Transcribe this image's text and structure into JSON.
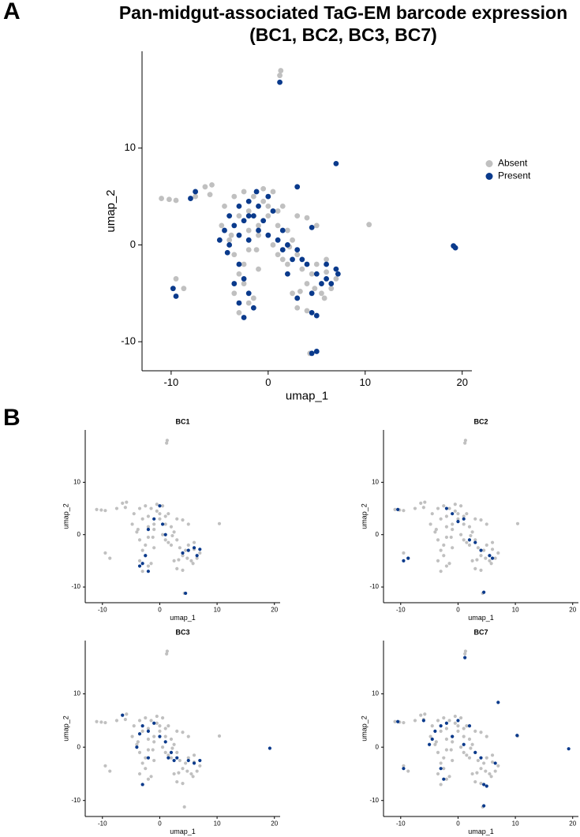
{
  "panel_labels": [
    "A",
    "B"
  ],
  "chart_data": [
    {
      "type": "scatter",
      "title": [
        "Pan-midgut-associated TaG-EM barcode expression",
        "(BC1, BC2, BC3, BC7)"
      ],
      "xlabel": "umap_1",
      "ylabel": "umap_2",
      "xlim": [
        -13,
        21
      ],
      "ylim": [
        -13,
        20
      ],
      "xticks": [
        -10,
        0,
        10,
        20
      ],
      "yticks": [
        -10,
        0,
        10
      ],
      "legend": "right",
      "series": [
        {
          "name": "Absent",
          "color": "#c0c0c0",
          "x": [
            1.2,
            1.3,
            -11,
            -10.2,
            -9.5,
            -6.5,
            -6,
            -5.8,
            -7.5,
            -4.5,
            -3.5,
            -2.5,
            -1.5,
            -0.5,
            0.5,
            1.5,
            -3,
            -2,
            -1,
            0,
            1,
            2,
            -4,
            -3.5,
            -2,
            -1,
            0.5,
            2.5,
            3,
            1.5,
            2,
            3.5,
            4.5,
            5,
            6,
            7,
            4,
            5.5,
            6.5,
            -3,
            -2.5,
            -3.5,
            -2,
            -3,
            -1.5,
            -2.5,
            3,
            4,
            10.4,
            5,
            3,
            4,
            -9.5,
            -8.7,
            4.3,
            2.5,
            1,
            -1,
            0,
            -4.8,
            -3.8,
            -1.2,
            6,
            3.3,
            2.2,
            4.8,
            5.8,
            -0.5,
            1,
            -2
          ],
          "values": [
            17.5,
            18,
            4.8,
            4.7,
            4.6,
            6,
            5.2,
            6.2,
            5,
            4,
            5,
            5.5,
            5,
            4.5,
            5.5,
            4,
            3,
            3.5,
            2,
            3,
            2,
            1.5,
            0.5,
            -1,
            -0.5,
            1,
            0,
            0.5,
            -1,
            -1.5,
            -2,
            -2.5,
            -3,
            -2,
            -2.8,
            -3.5,
            -4,
            -5,
            -4.5,
            -3,
            -4,
            -5,
            -6,
            -7,
            -5.5,
            -2,
            -6.5,
            -6.8,
            2.1,
            2,
            3,
            2.8,
            -3.5,
            -4.5,
            -11.2,
            -5,
            -1,
            -2.5,
            4,
            2,
            1,
            -0.5,
            -1.5,
            -4.8,
            -0.2,
            -4.5,
            -5.5,
            5.8,
            3.5,
            1.5
          ]
        },
        {
          "name": "Present",
          "color": "#0a3a8c",
          "x": [
            1.2,
            7,
            -4,
            -3,
            -2,
            -1,
            0,
            -2.5,
            -1.5,
            0.5,
            -4.5,
            -5,
            -4,
            -3,
            -2,
            -1,
            0,
            1,
            2,
            3,
            1.5,
            2.5,
            3.5,
            4,
            5,
            6,
            7,
            6.5,
            5.5,
            7.2,
            4.5,
            3,
            5,
            4.5,
            -3,
            -2.5,
            -3.5,
            -2,
            -3,
            -2.5,
            -1.5,
            -9.8,
            -9.5,
            19.3,
            19.1,
            5,
            4.5,
            -8,
            -7.5,
            4.5,
            3,
            -0.5,
            1.5,
            -4.2,
            -3.5,
            2,
            6,
            -1.2,
            -2
          ],
          "values": [
            16.8,
            8.4,
            3,
            4,
            4.5,
            4,
            5,
            2.5,
            3,
            3.5,
            1.5,
            0.5,
            0,
            1,
            0.5,
            1.5,
            1,
            0.5,
            0,
            -0.5,
            -0.5,
            -1.5,
            -1.5,
            -2,
            -3,
            -3.5,
            -2.5,
            -4,
            -4,
            -3,
            -5,
            -5.5,
            -7.3,
            -7,
            -2,
            -3.5,
            -4,
            -5,
            -6,
            -7.5,
            -6.5,
            -4.5,
            -5.3,
            -0.3,
            -0.1,
            -11,
            -11.2,
            4.8,
            5.5,
            1.8,
            6,
            2.5,
            1.5,
            -0.8,
            2,
            -3,
            -2,
            5.5,
            3
          ]
        }
      ]
    },
    {
      "type": "scatter",
      "title": "BC1",
      "xlabel": "umap_1",
      "ylabel": "umap_2",
      "xlim": [
        -13,
        21
      ],
      "ylim": [
        -13,
        20
      ],
      "xticks": [
        -10,
        0,
        10,
        20
      ],
      "yticks": [
        -10,
        0,
        10
      ],
      "series": [
        {
          "color": "#c0c0c0",
          "x": [
            1.2,
            1.3,
            -11,
            -10.2,
            -9.5,
            -6.5,
            -6,
            -5.8,
            -7.5,
            -4.5,
            -3.5,
            -2.5,
            -1.5,
            -0.5,
            0.5,
            1.5,
            -3,
            -2,
            -1,
            0,
            1,
            2,
            -4,
            -3.5,
            -2,
            -1,
            0.5,
            2.5,
            3,
            1.5,
            2,
            3.5,
            4.5,
            5,
            6,
            7,
            4,
            5.5,
            6.5,
            -3,
            -2.5,
            -3.5,
            -2,
            -3,
            -1.5,
            -2.5,
            3,
            4,
            10.4,
            5,
            3,
            4,
            -9.5,
            -8.7,
            4.3,
            2.5,
            1,
            -1,
            0,
            -4.8,
            -3.8,
            -1.2,
            6,
            3.3,
            2.2,
            4.8,
            5.8,
            -0.5,
            1,
            -2
          ],
          "values": [
            17.5,
            18,
            4.8,
            4.7,
            4.6,
            6,
            5.2,
            6.2,
            5,
            4,
            5,
            5.5,
            5,
            4.5,
            5.5,
            4,
            3,
            3.5,
            2,
            3,
            2,
            1.5,
            0.5,
            -1,
            -0.5,
            1,
            0,
            0.5,
            -1,
            -1.5,
            -2,
            -2.5,
            -3,
            -2,
            -2.8,
            -3.5,
            -4,
            -5,
            -4.5,
            -3,
            -4,
            -5,
            -6,
            -7,
            -5.5,
            -2,
            -6.5,
            -6.8,
            2.1,
            2,
            3,
            2.8,
            -3.5,
            -4.5,
            -11.2,
            -5,
            -1,
            -2.5,
            4,
            2,
            1,
            -0.5,
            -1.5,
            -4.8,
            -0.2,
            -4.5,
            -5.5,
            5.8,
            3.5,
            1.5
          ]
        },
        {
          "color": "#0a3a8c",
          "x": [
            0,
            -1,
            -2,
            0.5,
            1,
            -2.5,
            -3,
            -2,
            -3.5,
            4,
            6,
            6.5,
            5,
            7,
            4.5
          ],
          "values": [
            5.5,
            3,
            1,
            2,
            0,
            -4,
            -5.5,
            -7,
            -6,
            -3.5,
            -2.5,
            -4,
            -3,
            -2.8,
            -11.2
          ]
        }
      ]
    },
    {
      "type": "scatter",
      "title": "BC2",
      "xlabel": "umap_1",
      "ylabel": "umap_2",
      "xlim": [
        -13,
        21
      ],
      "ylim": [
        -13,
        20
      ],
      "xticks": [
        -10,
        0,
        10,
        20
      ],
      "yticks": [
        -10,
        0,
        10
      ],
      "series": [
        {
          "color": "#c0c0c0",
          "x": [
            1.2,
            1.3,
            -11,
            -10.2,
            -9.5,
            -6.5,
            -6,
            -5.8,
            -7.5,
            -4.5,
            -3.5,
            -2.5,
            -1.5,
            -0.5,
            0.5,
            1.5,
            -3,
            -2,
            -1,
            0,
            1,
            2,
            -4,
            -3.5,
            -2,
            -1,
            0.5,
            2.5,
            3,
            1.5,
            2,
            3.5,
            4.5,
            5,
            6,
            7,
            4,
            5.5,
            6.5,
            -3,
            -2.5,
            -3.5,
            -2,
            -3,
            -1.5,
            -2.5,
            3,
            4,
            10.4,
            5,
            3,
            4,
            -9.5,
            -8.7,
            4.3,
            2.5,
            1,
            -1,
            0,
            -4.8,
            -3.8,
            -1.2,
            6,
            3.3,
            2.2,
            4.8,
            5.8,
            -0.5,
            1,
            -2
          ],
          "values": [
            17.5,
            18,
            4.8,
            4.7,
            4.6,
            6,
            5.2,
            6.2,
            5,
            4,
            5,
            5.5,
            5,
            4.5,
            5.5,
            4,
            3,
            3.5,
            2,
            3,
            2,
            1.5,
            0.5,
            -1,
            -0.5,
            1,
            0,
            0.5,
            -1,
            -1.5,
            -2,
            -2.5,
            -3,
            -2,
            -2.8,
            -3.5,
            -4,
            -5,
            -4.5,
            -3,
            -4,
            -5,
            -6,
            -7,
            -5.5,
            -2,
            -6.5,
            -6.8,
            2.1,
            2,
            3,
            2.8,
            -3.5,
            -4.5,
            -11.2,
            -5,
            -1,
            -2.5,
            4,
            2,
            1,
            -0.5,
            -1.5,
            -4.8,
            -0.2,
            -4.5,
            -5.5,
            5.8,
            3.5,
            1.5
          ]
        },
        {
          "color": "#0a3a8c",
          "x": [
            -1,
            0,
            -2,
            2,
            3,
            4,
            5.5,
            6,
            -10.5,
            -9.5,
            -8.7,
            4.5,
            1
          ],
          "values": [
            4,
            2.5,
            5,
            -1,
            -1.5,
            -3,
            -4,
            -4.5,
            4.8,
            -5,
            -4.5,
            -11,
            3
          ]
        }
      ]
    },
    {
      "type": "scatter",
      "title": "BC3",
      "xlabel": "umap_1",
      "ylabel": "umap_2",
      "xlim": [
        -13,
        21
      ],
      "ylim": [
        -13,
        20
      ],
      "xticks": [
        -10,
        0,
        10,
        20
      ],
      "yticks": [
        -10,
        0,
        10
      ],
      "series": [
        {
          "color": "#c0c0c0",
          "x": [
            1.2,
            1.3,
            -11,
            -10.2,
            -9.5,
            -6.5,
            -6,
            -5.8,
            -7.5,
            -4.5,
            -3.5,
            -2.5,
            -1.5,
            -0.5,
            0.5,
            1.5,
            -3,
            -2,
            -1,
            0,
            1,
            2,
            -4,
            -3.5,
            -2,
            -1,
            0.5,
            2.5,
            3,
            1.5,
            2,
            3.5,
            4.5,
            5,
            6,
            7,
            4,
            5.5,
            6.5,
            -3,
            -2.5,
            -3.5,
            -2,
            -3,
            -1.5,
            -2.5,
            3,
            4,
            10.4,
            5,
            3,
            4,
            -9.5,
            -8.7,
            4.3,
            2.5,
            1,
            -1,
            0,
            -4.8,
            -3.8,
            -1.2,
            6,
            3.3,
            2.2,
            4.8,
            5.8,
            -0.5,
            1,
            -2
          ],
          "values": [
            17.5,
            18,
            4.8,
            4.7,
            4.6,
            6,
            5.2,
            6.2,
            5,
            4,
            5,
            5.5,
            5,
            4.5,
            5.5,
            4,
            3,
            3.5,
            2,
            3,
            2,
            1.5,
            0.5,
            -1,
            -0.5,
            1,
            0,
            0.5,
            -1,
            -1.5,
            -2,
            -2.5,
            -3,
            -2,
            -2.8,
            -3.5,
            -4,
            -5,
            -4.5,
            -3,
            -4,
            -5,
            -6,
            -7,
            -5.5,
            -2,
            -6.5,
            -6.8,
            2.1,
            2,
            3,
            2.8,
            -3.5,
            -4.5,
            -11.2,
            -5,
            -1,
            -2.5,
            4,
            2,
            1,
            -0.5,
            -1.5,
            -4.8,
            -0.2,
            -4.5,
            -5.5,
            5.8,
            3.5,
            1.5
          ]
        },
        {
          "color": "#0a3a8c",
          "x": [
            -3,
            -2,
            -1,
            0,
            1,
            2,
            3,
            -3.5,
            -4,
            -2,
            -3,
            5,
            6,
            7,
            19.2,
            -6.5,
            1.5,
            2.5
          ],
          "values": [
            4,
            3,
            4.5,
            2,
            1,
            -1,
            -2,
            2.5,
            0,
            -2,
            -7,
            -2.5,
            -3,
            -2.5,
            -0.2,
            6,
            -2,
            -2.5
          ]
        }
      ]
    },
    {
      "type": "scatter",
      "title": "BC7",
      "xlabel": "umap_1",
      "ylabel": "umap_2",
      "xlim": [
        -13,
        21
      ],
      "ylim": [
        -13,
        20
      ],
      "xticks": [
        -10,
        0,
        10,
        20
      ],
      "yticks": [
        -10,
        0,
        10
      ],
      "series": [
        {
          "color": "#c0c0c0",
          "x": [
            1.2,
            1.3,
            -11,
            -10.2,
            -9.5,
            -6.5,
            -6,
            -5.8,
            -7.5,
            -4.5,
            -3.5,
            -2.5,
            -1.5,
            -0.5,
            0.5,
            1.5,
            -3,
            -2,
            -1,
            0,
            1,
            2,
            -4,
            -3.5,
            -2,
            -1,
            0.5,
            2.5,
            3,
            1.5,
            2,
            3.5,
            4.5,
            5,
            6,
            7,
            4,
            5.5,
            6.5,
            -3,
            -2.5,
            -3.5,
            -2,
            -3,
            -1.5,
            -2.5,
            3,
            4,
            10.4,
            5,
            3,
            4,
            -9.5,
            -8.7,
            4.3,
            2.5,
            1,
            -1,
            0,
            -4.8,
            -3.8,
            -1.2,
            6,
            3.3,
            2.2,
            4.8,
            5.8,
            -0.5,
            1,
            -2
          ],
          "values": [
            17.5,
            18,
            4.8,
            4.7,
            4.6,
            6,
            5.2,
            6.2,
            5,
            4,
            5,
            5.5,
            5,
            4.5,
            5.5,
            4,
            3,
            3.5,
            2,
            3,
            2,
            1.5,
            0.5,
            -1,
            -0.5,
            1,
            0,
            0.5,
            -1,
            -1.5,
            -2,
            -2.5,
            -3,
            -2,
            -2.8,
            -3.5,
            -4,
            -5,
            -4.5,
            -3,
            -4,
            -5,
            -6,
            -7,
            -5.5,
            -2,
            -6.5,
            -6.8,
            2.1,
            2,
            3,
            2.8,
            -3.5,
            -4.5,
            -11.2,
            -5,
            -1,
            -2.5,
            4,
            2,
            1,
            -0.5,
            -1.5,
            -4.8,
            -0.2,
            -4.5,
            -5.5,
            5.8,
            3.5,
            1.5
          ]
        },
        {
          "color": "#0a3a8c",
          "x": [
            1.2,
            7,
            -4.5,
            -5,
            -4,
            -3,
            -2,
            0,
            -1,
            1,
            2,
            3,
            4,
            4.5,
            5,
            -3,
            -2.5,
            -10.5,
            -9.5,
            4.5,
            19.3,
            10.3,
            6.5,
            -6
          ],
          "values": [
            16.8,
            8.4,
            1.5,
            0.5,
            3,
            4,
            4.5,
            5,
            2,
            0.5,
            4,
            -1,
            -2,
            -7,
            -7.3,
            -4,
            -6,
            4.8,
            -4,
            -11,
            -0.3,
            2.2,
            -3,
            5
          ]
        }
      ]
    }
  ]
}
